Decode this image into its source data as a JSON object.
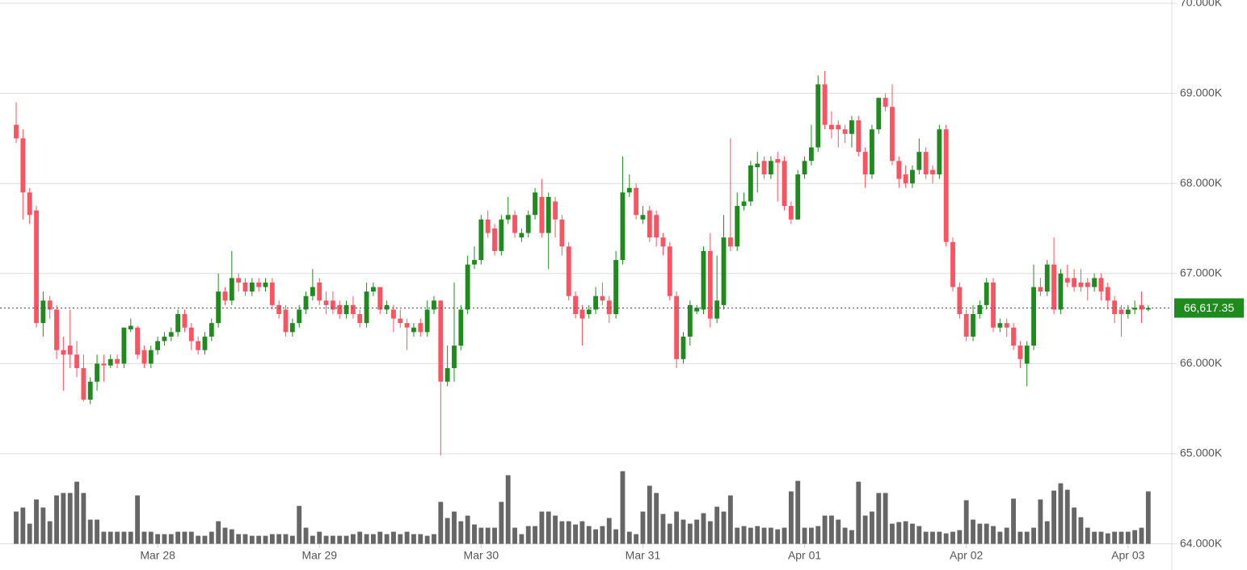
{
  "chart_data": {
    "type": "candlestick",
    "up_color": "#1f8b1f",
    "down_color": "#fa5463",
    "volume_color": "#666666",
    "grid": true,
    "ylim": [
      64000,
      70000
    ],
    "yticks": [
      {
        "value": 64000,
        "label": "64.000K"
      },
      {
        "value": 65000,
        "label": "65.000K"
      },
      {
        "value": 66000,
        "label": "66.000K"
      },
      {
        "value": 67000,
        "label": "67.000K"
      },
      {
        "value": 68000,
        "label": "68.000K"
      },
      {
        "value": 69000,
        "label": "69.000K"
      },
      {
        "value": 70000,
        "label": "70.000K"
      }
    ],
    "xlim": [
      -2.4,
      171.5
    ],
    "xticks": [
      {
        "value": 21,
        "label": "Mar 28"
      },
      {
        "value": 45,
        "label": "Mar 29"
      },
      {
        "value": 69,
        "label": "Mar 30"
      },
      {
        "value": 93,
        "label": "Mar 31"
      },
      {
        "value": 117,
        "label": "Apr 01"
      },
      {
        "value": 141,
        "label": "Apr 02"
      },
      {
        "value": 165,
        "label": "Apr 03"
      }
    ],
    "last_price": {
      "value": 66617.35,
      "label": "66,617.35"
    },
    "candles": [
      [
        68650,
        68900,
        68450,
        68500,
        40
      ],
      [
        68500,
        68600,
        67600,
        67900,
        45
      ],
      [
        67900,
        67950,
        67550,
        67650,
        25
      ],
      [
        67700,
        67750,
        66400,
        66450,
        55
      ],
      [
        66450,
        66800,
        66300,
        66700,
        45
      ],
      [
        66700,
        66750,
        66500,
        66600,
        28
      ],
      [
        66600,
        66650,
        66050,
        66150,
        60
      ],
      [
        66150,
        66300,
        65700,
        66100,
        63
      ],
      [
        66200,
        66600,
        65950,
        66100,
        63
      ],
      [
        66100,
        66250,
        65850,
        65950,
        77
      ],
      [
        65950,
        66100,
        65580,
        65600,
        63
      ],
      [
        65600,
        65850,
        65550,
        65800,
        30
      ],
      [
        65800,
        66100,
        65700,
        66000,
        30
      ],
      [
        66000,
        66100,
        65800,
        65980,
        15
      ],
      [
        65980,
        66100,
        65950,
        66050,
        15
      ],
      [
        66050,
        66100,
        65950,
        66000,
        15
      ],
      [
        66000,
        66400,
        65950,
        66400,
        15
      ],
      [
        66380,
        66500,
        66350,
        66420,
        15
      ],
      [
        66400,
        66420,
        66050,
        66100,
        60
      ],
      [
        66150,
        66200,
        65950,
        66000,
        15
      ],
      [
        66000,
        66200,
        65950,
        66150,
        15
      ],
      [
        66150,
        66300,
        66100,
        66250,
        12
      ],
      [
        66250,
        66350,
        66200,
        66300,
        12
      ],
      [
        66300,
        66400,
        66250,
        66350,
        12
      ],
      [
        66350,
        66600,
        66300,
        66550,
        15
      ],
      [
        66550,
        66600,
        66350,
        66400,
        15
      ],
      [
        66400,
        66450,
        66150,
        66250,
        15
      ],
      [
        66250,
        66300,
        66100,
        66150,
        10
      ],
      [
        66150,
        66350,
        66100,
        66300,
        10
      ],
      [
        66300,
        66500,
        66250,
        66450,
        15
      ],
      [
        66450,
        67000,
        66400,
        66800,
        28
      ],
      [
        66800,
        66850,
        66650,
        66700,
        20
      ],
      [
        66700,
        67250,
        66650,
        66950,
        18
      ],
      [
        66950,
        67000,
        66800,
        66900,
        12
      ],
      [
        66900,
        66950,
        66750,
        66800,
        12
      ],
      [
        66800,
        66950,
        66750,
        66900,
        10
      ],
      [
        66900,
        66950,
        66800,
        66850,
        10
      ],
      [
        66850,
        66950,
        66800,
        66900,
        10
      ],
      [
        66900,
        66950,
        66600,
        66650,
        12
      ],
      [
        66650,
        66700,
        66500,
        66550,
        12
      ],
      [
        66600,
        66650,
        66300,
        66350,
        12
      ],
      [
        66350,
        66500,
        66300,
        66450,
        10
      ],
      [
        66450,
        66650,
        66400,
        66600,
        47
      ],
      [
        66600,
        66800,
        66550,
        66750,
        20
      ],
      [
        66750,
        67050,
        66700,
        66850,
        10
      ],
      [
        66900,
        66950,
        66650,
        66700,
        15
      ],
      [
        66700,
        66800,
        66550,
        66650,
        10
      ],
      [
        66700,
        66800,
        66550,
        66600,
        10
      ],
      [
        66650,
        66700,
        66500,
        66550,
        10
      ],
      [
        66550,
        66700,
        66500,
        66650,
        10
      ],
      [
        66650,
        66750,
        66500,
        66550,
        12
      ],
      [
        66550,
        66600,
        66400,
        66450,
        15
      ],
      [
        66450,
        66900,
        66400,
        66800,
        12
      ],
      [
        66800,
        66900,
        66750,
        66850,
        12
      ],
      [
        66850,
        66850,
        66550,
        66600,
        15
      ],
      [
        66600,
        66700,
        66550,
        66650,
        12
      ],
      [
        66600,
        66650,
        66350,
        66500,
        15
      ],
      [
        66500,
        66600,
        66400,
        66450,
        12
      ],
      [
        66450,
        66500,
        66150,
        66400,
        15
      ],
      [
        66350,
        66450,
        66300,
        66400,
        12
      ],
      [
        66450,
        66500,
        66300,
        66350,
        12
      ],
      [
        66350,
        66700,
        66300,
        66600,
        10
      ],
      [
        66600,
        66750,
        66550,
        66700,
        12
      ],
      [
        66700,
        66700,
        64980,
        65800,
        52
      ],
      [
        65800,
        66200,
        65750,
        65950,
        32
      ],
      [
        65950,
        66900,
        65800,
        66200,
        40
      ],
      [
        66200,
        66650,
        66150,
        66600,
        28
      ],
      [
        66600,
        67200,
        66550,
        67100,
        35
      ],
      [
        67100,
        67300,
        67050,
        67150,
        24
      ],
      [
        67150,
        67650,
        67100,
        67600,
        20
      ],
      [
        67600,
        67700,
        67400,
        67450,
        20
      ],
      [
        67500,
        67550,
        67200,
        67250,
        20
      ],
      [
        67250,
        67650,
        67200,
        67600,
        52
      ],
      [
        67600,
        67850,
        67550,
        67650,
        85
      ],
      [
        67650,
        67700,
        67400,
        67450,
        20
      ],
      [
        67400,
        67500,
        67350,
        67450,
        12
      ],
      [
        67450,
        67700,
        67400,
        67650,
        22
      ],
      [
        67650,
        67950,
        67600,
        67900,
        22
      ],
      [
        67850,
        68050,
        67400,
        67450,
        40
      ],
      [
        67450,
        67900,
        67050,
        67850,
        40
      ],
      [
        67800,
        67850,
        67400,
        67600,
        35
      ],
      [
        67600,
        67650,
        67200,
        67300,
        28
      ],
      [
        67300,
        67350,
        66700,
        66750,
        28
      ],
      [
        66750,
        66800,
        66500,
        66550,
        24
      ],
      [
        66600,
        66650,
        66200,
        66500,
        28
      ],
      [
        66550,
        66650,
        66500,
        66600,
        22
      ],
      [
        66600,
        66850,
        66550,
        66750,
        18
      ],
      [
        66750,
        66900,
        66650,
        66700,
        22
      ],
      [
        66700,
        66750,
        66450,
        66550,
        32
      ],
      [
        66550,
        67250,
        66500,
        67150,
        18
      ],
      [
        67150,
        68300,
        67100,
        67900,
        90
      ],
      [
        67900,
        68100,
        67850,
        67950,
        15
      ],
      [
        67950,
        68000,
        67600,
        67650,
        12
      ],
      [
        67600,
        67750,
        67550,
        67650,
        40
      ],
      [
        67700,
        67750,
        67350,
        67400,
        72
      ],
      [
        67650,
        67700,
        67300,
        67400,
        63
      ],
      [
        67400,
        67450,
        67200,
        67300,
        37
      ],
      [
        67300,
        67350,
        66700,
        66750,
        25
      ],
      [
        66750,
        66800,
        65950,
        66050,
        40
      ],
      [
        66050,
        66350,
        66000,
        66300,
        30
      ],
      [
        66300,
        66700,
        66200,
        66650,
        25
      ],
      [
        66580,
        66650,
        66550,
        66620,
        30
      ],
      [
        66600,
        67300,
        66550,
        67250,
        38
      ],
      [
        67250,
        67450,
        66400,
        66500,
        28
      ],
      [
        66500,
        67200,
        66450,
        66700,
        46
      ],
      [
        66650,
        67650,
        66600,
        67400,
        40
      ],
      [
        67400,
        68500,
        67250,
        67300,
        60
      ],
      [
        67300,
        67900,
        67250,
        67750,
        20
      ],
      [
        67750,
        67900,
        67700,
        67800,
        22
      ],
      [
        67800,
        68250,
        67750,
        68200,
        20
      ],
      [
        68180,
        68350,
        67900,
        68220,
        22
      ],
      [
        68250,
        68300,
        68050,
        68100,
        20
      ],
      [
        68100,
        68300,
        68050,
        68250,
        20
      ],
      [
        68270,
        68350,
        67800,
        68230,
        18
      ],
      [
        68250,
        68300,
        67700,
        67750,
        20
      ],
      [
        67750,
        67800,
        67550,
        67600,
        65
      ],
      [
        67600,
        68150,
        67600,
        68100,
        78
      ],
      [
        68100,
        68300,
        68050,
        68250,
        20
      ],
      [
        68250,
        68650,
        68200,
        68400,
        20
      ],
      [
        68400,
        69200,
        68350,
        69100,
        22
      ],
      [
        69100,
        69250,
        68600,
        68650,
        35
      ],
      [
        68650,
        68800,
        68500,
        68600,
        35
      ],
      [
        68650,
        68700,
        68400,
        68600,
        30
      ],
      [
        68600,
        68650,
        68450,
        68550,
        20
      ],
      [
        68550,
        68750,
        68400,
        68700,
        17
      ],
      [
        68700,
        68750,
        68300,
        68350,
        77
      ],
      [
        68350,
        68400,
        67950,
        68100,
        35
      ],
      [
        68100,
        68650,
        68050,
        68600,
        40
      ],
      [
        68600,
        68950,
        68550,
        68950,
        63
      ],
      [
        68950,
        69000,
        68800,
        68850,
        63
      ],
      [
        68850,
        69100,
        68200,
        68250,
        25
      ],
      [
        68250,
        68300,
        67950,
        68050,
        27
      ],
      [
        68100,
        68200,
        67950,
        68000,
        28
      ],
      [
        68000,
        68200,
        67950,
        68150,
        25
      ],
      [
        68150,
        68500,
        68100,
        68350,
        22
      ],
      [
        68350,
        68400,
        68050,
        68100,
        15
      ],
      [
        68150,
        68200,
        68000,
        68100,
        15
      ],
      [
        68100,
        68650,
        68050,
        68600,
        15
      ],
      [
        68600,
        68650,
        67300,
        67350,
        13
      ],
      [
        67350,
        67400,
        66800,
        66850,
        15
      ],
      [
        66850,
        66900,
        66500,
        66550,
        17
      ],
      [
        66550,
        66600,
        66250,
        66300,
        54
      ],
      [
        66300,
        66650,
        66250,
        66550,
        30
      ],
      [
        66550,
        66700,
        66500,
        66650,
        25
      ],
      [
        66650,
        66950,
        66600,
        66900,
        25
      ],
      [
        66900,
        66950,
        66350,
        66400,
        22
      ],
      [
        66400,
        66500,
        66350,
        66450,
        15
      ],
      [
        66450,
        66500,
        66300,
        66400,
        20
      ],
      [
        66400,
        66450,
        66150,
        66200,
        56
      ],
      [
        66200,
        66250,
        65950,
        66050,
        15
      ],
      [
        66000,
        66250,
        65750,
        66200,
        15
      ],
      [
        66200,
        67100,
        66150,
        66850,
        20
      ],
      [
        66850,
        66950,
        66750,
        66800,
        55
      ],
      [
        66800,
        67150,
        66750,
        67100,
        28
      ],
      [
        67100,
        67400,
        66550,
        66600,
        66
      ],
      [
        66600,
        67050,
        66550,
        67000,
        75
      ],
      [
        66950,
        67100,
        66850,
        66900,
        67
      ],
      [
        66950,
        67050,
        66800,
        66850,
        45
      ],
      [
        66900,
        67050,
        66800,
        66850,
        33
      ],
      [
        66900,
        66950,
        66700,
        66850,
        20
      ],
      [
        66850,
        67000,
        66800,
        66950,
        15
      ],
      [
        66950,
        67000,
        66700,
        66800,
        15
      ],
      [
        66850,
        66900,
        66600,
        66700,
        13
      ],
      [
        66700,
        66750,
        66450,
        66550,
        15
      ],
      [
        66600,
        66650,
        66300,
        66550,
        15
      ],
      [
        66550,
        66650,
        66500,
        66600,
        15
      ],
      [
        66600,
        66700,
        66550,
        66620,
        17
      ],
      [
        66650,
        66800,
        66450,
        66600,
        20
      ],
      [
        66600,
        66650,
        66580,
        66617.35,
        65
      ]
    ]
  }
}
